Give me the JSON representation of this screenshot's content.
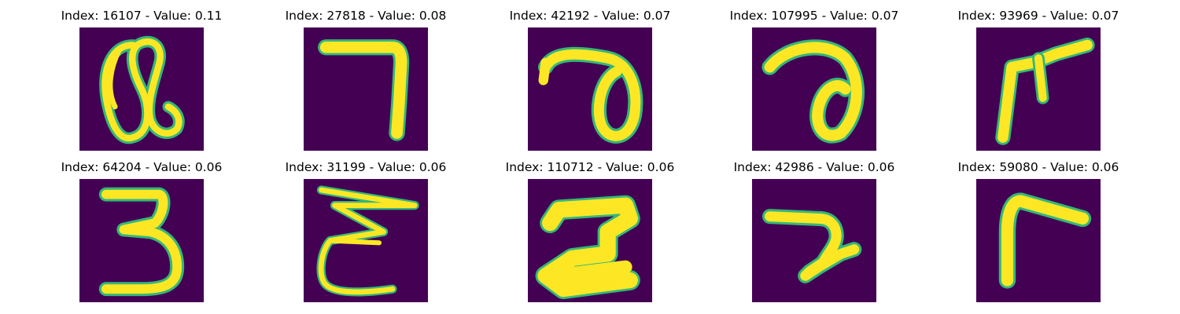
{
  "figure": {
    "colors": {
      "background": "#440154",
      "mid_dark": "#31688e",
      "mid": "#35b779",
      "stroke": "#fde725"
    },
    "panels": [
      {
        "index_label": "Index: 16107 - Value: 0.11",
        "glyph": "a-loop"
      },
      {
        "index_label": "Index: 27818 - Value: 0.08",
        "glyph": "seven"
      },
      {
        "index_label": "Index: 42192 - Value: 0.07",
        "glyph": "loop-right"
      },
      {
        "index_label": "Index: 107995 - Value: 0.07",
        "glyph": "curl"
      },
      {
        "index_label": "Index: 93969 - Value: 0.07",
        "glyph": "branch"
      },
      {
        "index_label": "Index: 64204 - Value: 0.06",
        "glyph": "three"
      },
      {
        "index_label": "Index: 31199 - Value: 0.06",
        "glyph": "zigzag"
      },
      {
        "index_label": "Index: 110712 - Value: 0.06",
        "glyph": "z-thick"
      },
      {
        "index_label": "Index: 42986 - Value: 0.06",
        "glyph": "hook"
      },
      {
        "index_label": "Index: 59080 - Value: 0.06",
        "glyph": "corner"
      }
    ]
  }
}
